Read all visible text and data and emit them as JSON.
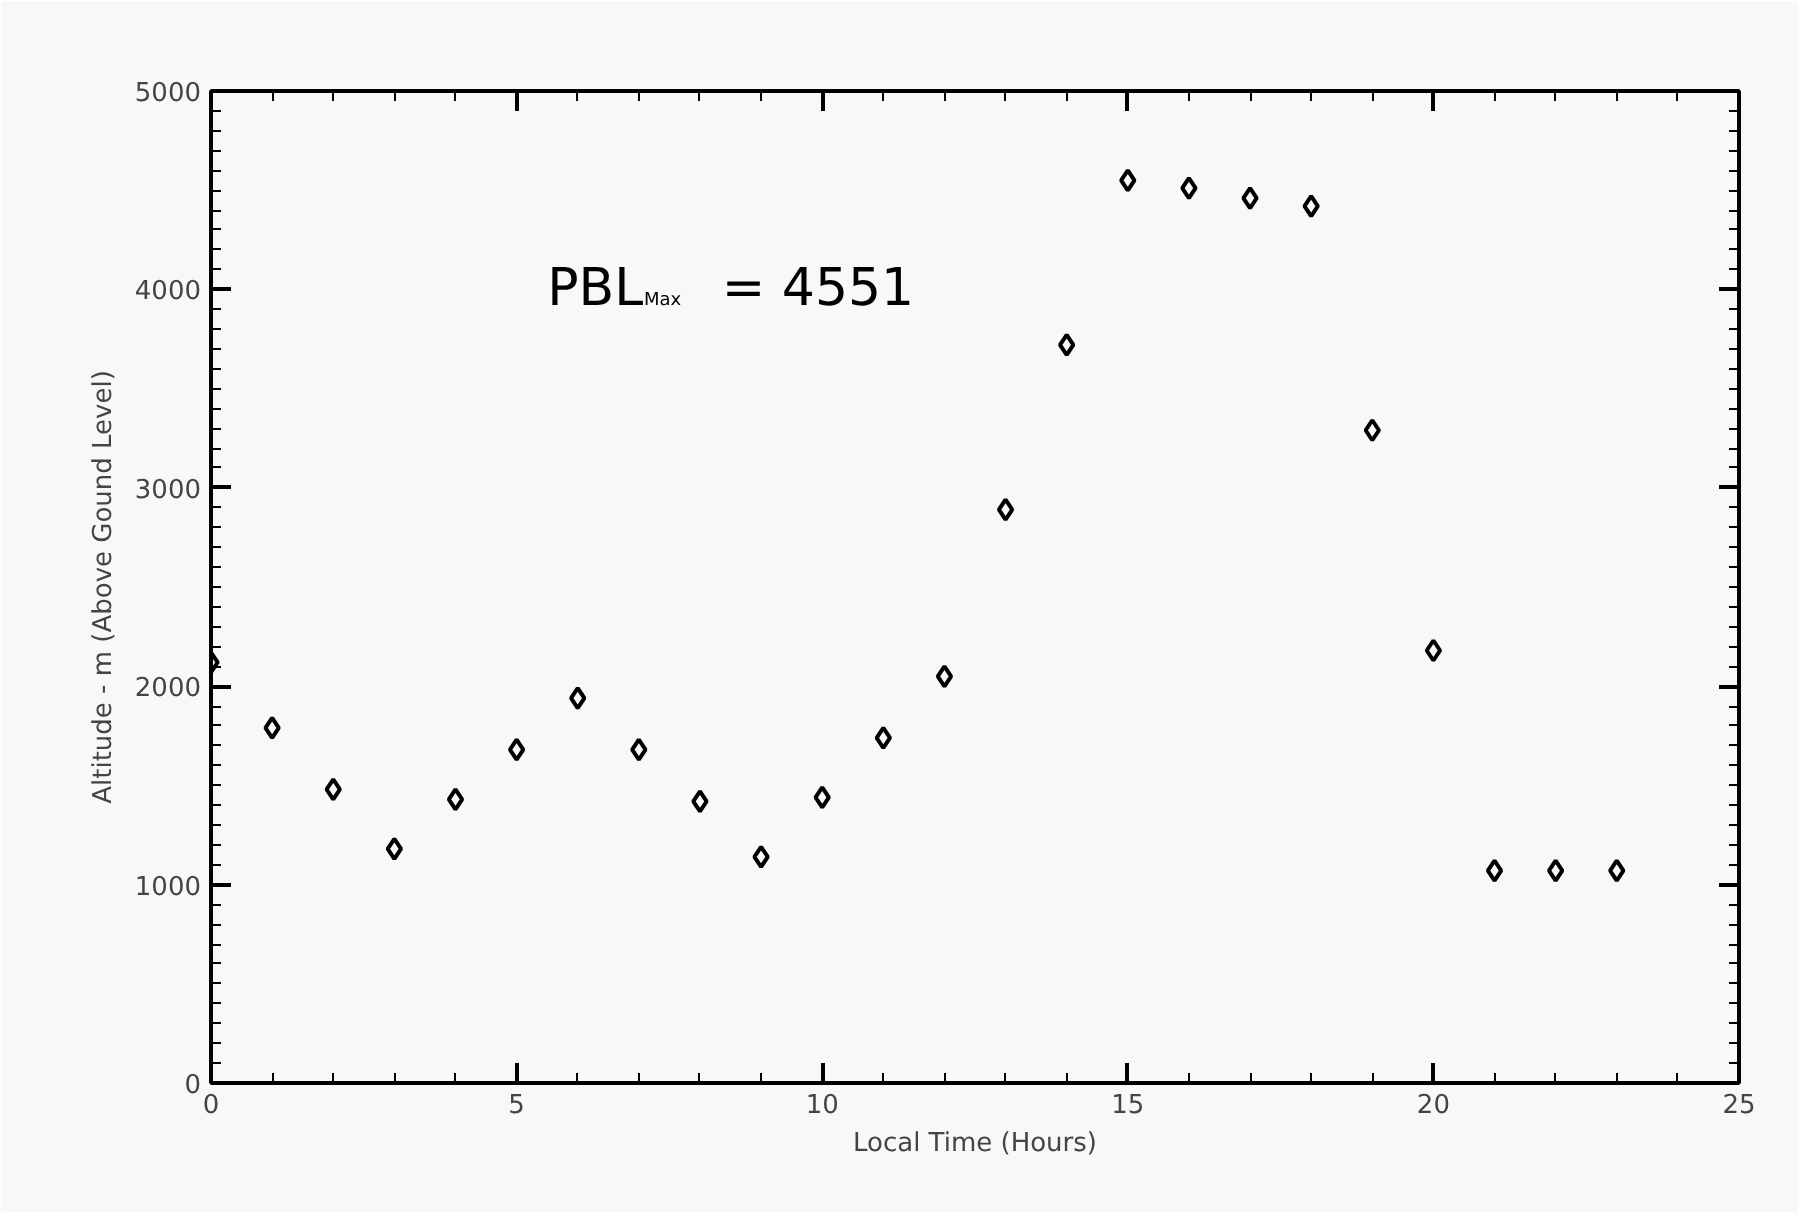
{
  "chart_data": {
    "type": "scatter",
    "xlabel": "Local Time (Hours)",
    "ylabel": "Altitude - m (Above Gound Level)",
    "annotations": [
      "PBL$_{Max}$ = 4551"
    ],
    "x": [
      0,
      1,
      2,
      3,
      4,
      5,
      6,
      7,
      8,
      9,
      10,
      11,
      12,
      13,
      14,
      15,
      16,
      17,
      18,
      19,
      20,
      21,
      22,
      23
    ],
    "series": [
      {
        "color": "#000000",
        "values": [
          2120,
          1790,
          1480,
          1180,
          1430,
          1680,
          1940,
          1680,
          1420,
          1140,
          1440,
          1740,
          2050,
          2890,
          3720,
          4550,
          4510,
          4460,
          4420,
          3290,
          2180,
          1070,
          1070,
          1070
        ]
      }
    ],
    "xlim": [
      0,
      25
    ],
    "xticks": [
      0,
      5,
      10,
      15,
      20,
      25
    ],
    "ylim": [
      0,
      5000
    ],
    "yticks": [
      0,
      1000,
      2000,
      3000,
      4000,
      5000
    ],
    "marker": "diamond",
    "grid": false
  }
}
